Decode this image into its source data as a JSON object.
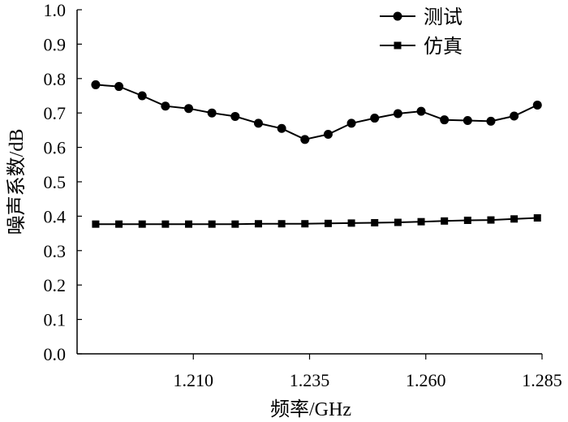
{
  "chart_data": {
    "type": "line",
    "xlabel": "频率/GHz",
    "ylabel": "噪声系数/dB",
    "xlim": [
      1.185,
      1.285
    ],
    "ylim": [
      0.0,
      1.0
    ],
    "x_ticks": [
      "1.210",
      "1.235",
      "1.260",
      "1.285"
    ],
    "y_ticks": [
      "0.0",
      "0.1",
      "0.2",
      "0.3",
      "0.4",
      "0.5",
      "0.6",
      "0.7",
      "0.8",
      "0.9",
      "1.0"
    ],
    "grid": false,
    "legend_position": "top-right",
    "x": [
      1.189,
      1.194,
      1.199,
      1.204,
      1.209,
      1.214,
      1.219,
      1.224,
      1.229,
      1.234,
      1.239,
      1.244,
      1.249,
      1.254,
      1.259,
      1.264,
      1.269,
      1.274,
      1.279,
      1.284
    ],
    "series": [
      {
        "name": "测试",
        "marker": "circle",
        "values": [
          0.782,
          0.777,
          0.75,
          0.72,
          0.713,
          0.7,
          0.69,
          0.67,
          0.655,
          0.623,
          0.638,
          0.67,
          0.685,
          0.698,
          0.705,
          0.68,
          0.678,
          0.676,
          0.691,
          0.723
        ]
      },
      {
        "name": "仿真",
        "marker": "square",
        "values": [
          0.377,
          0.377,
          0.377,
          0.377,
          0.377,
          0.377,
          0.377,
          0.378,
          0.378,
          0.378,
          0.379,
          0.38,
          0.381,
          0.382,
          0.384,
          0.386,
          0.388,
          0.389,
          0.392,
          0.395
        ]
      }
    ]
  }
}
